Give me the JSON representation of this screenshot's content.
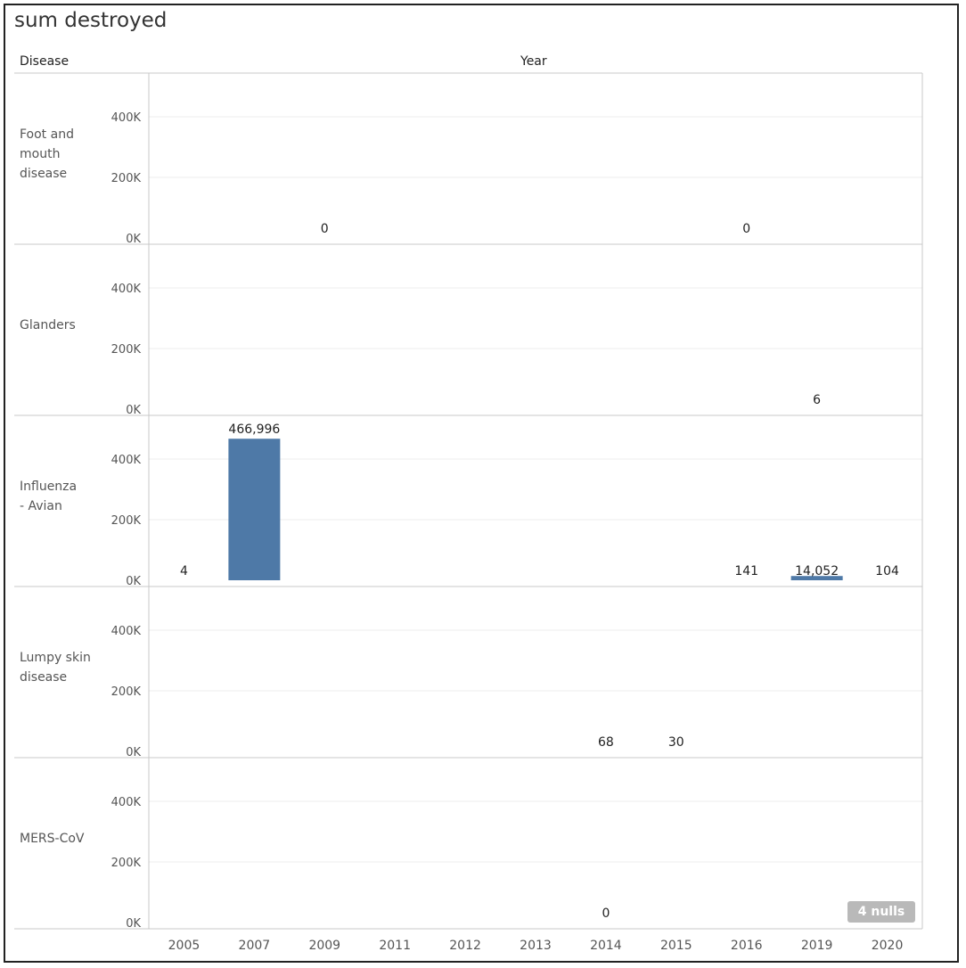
{
  "title": "sum destroyed",
  "headers": {
    "row_dim": "Disease",
    "col_dim": "Year"
  },
  "nulls_badge": "4 nulls",
  "colors": {
    "bar": "#4e79a7",
    "grid": "#ececec",
    "divider": "#c8c8c8",
    "text": "#333333"
  },
  "chart_data": {
    "type": "bar",
    "categories": [
      "2005",
      "2007",
      "2009",
      "2011",
      "2012",
      "2013",
      "2014",
      "2015",
      "2016",
      "2019",
      "2020"
    ],
    "ylim": [
      0,
      560000
    ],
    "y_ticks": [
      0,
      200000,
      400000
    ],
    "y_tick_labels": [
      "0K",
      "200K",
      "400K"
    ],
    "series": [
      {
        "name": "Foot and mouth disease",
        "values": [
          null,
          null,
          0,
          null,
          null,
          null,
          null,
          null,
          0,
          null,
          null
        ],
        "labels": [
          null,
          null,
          "0",
          null,
          null,
          null,
          null,
          null,
          "0",
          null,
          null
        ]
      },
      {
        "name": "Glanders",
        "values": [
          null,
          null,
          null,
          null,
          null,
          null,
          null,
          null,
          null,
          6,
          null
        ],
        "labels": [
          null,
          null,
          null,
          null,
          null,
          null,
          null,
          null,
          null,
          "6",
          null
        ]
      },
      {
        "name": "Influenza - Avian",
        "values": [
          4,
          466996,
          null,
          null,
          null,
          null,
          null,
          null,
          141,
          14052,
          104
        ],
        "labels": [
          "4",
          "466,996",
          null,
          null,
          null,
          null,
          null,
          null,
          "141",
          "14,052",
          "104"
        ]
      },
      {
        "name": "Lumpy skin disease",
        "values": [
          null,
          null,
          null,
          null,
          null,
          null,
          68,
          30,
          null,
          null,
          null
        ],
        "labels": [
          null,
          null,
          null,
          null,
          null,
          null,
          "68",
          "30",
          null,
          null,
          null
        ]
      },
      {
        "name": "MERS-CoV",
        "values": [
          null,
          null,
          null,
          null,
          null,
          null,
          0,
          null,
          null,
          null,
          null
        ],
        "labels": [
          null,
          null,
          null,
          null,
          null,
          null,
          "0",
          null,
          null,
          null,
          null
        ]
      }
    ]
  }
}
